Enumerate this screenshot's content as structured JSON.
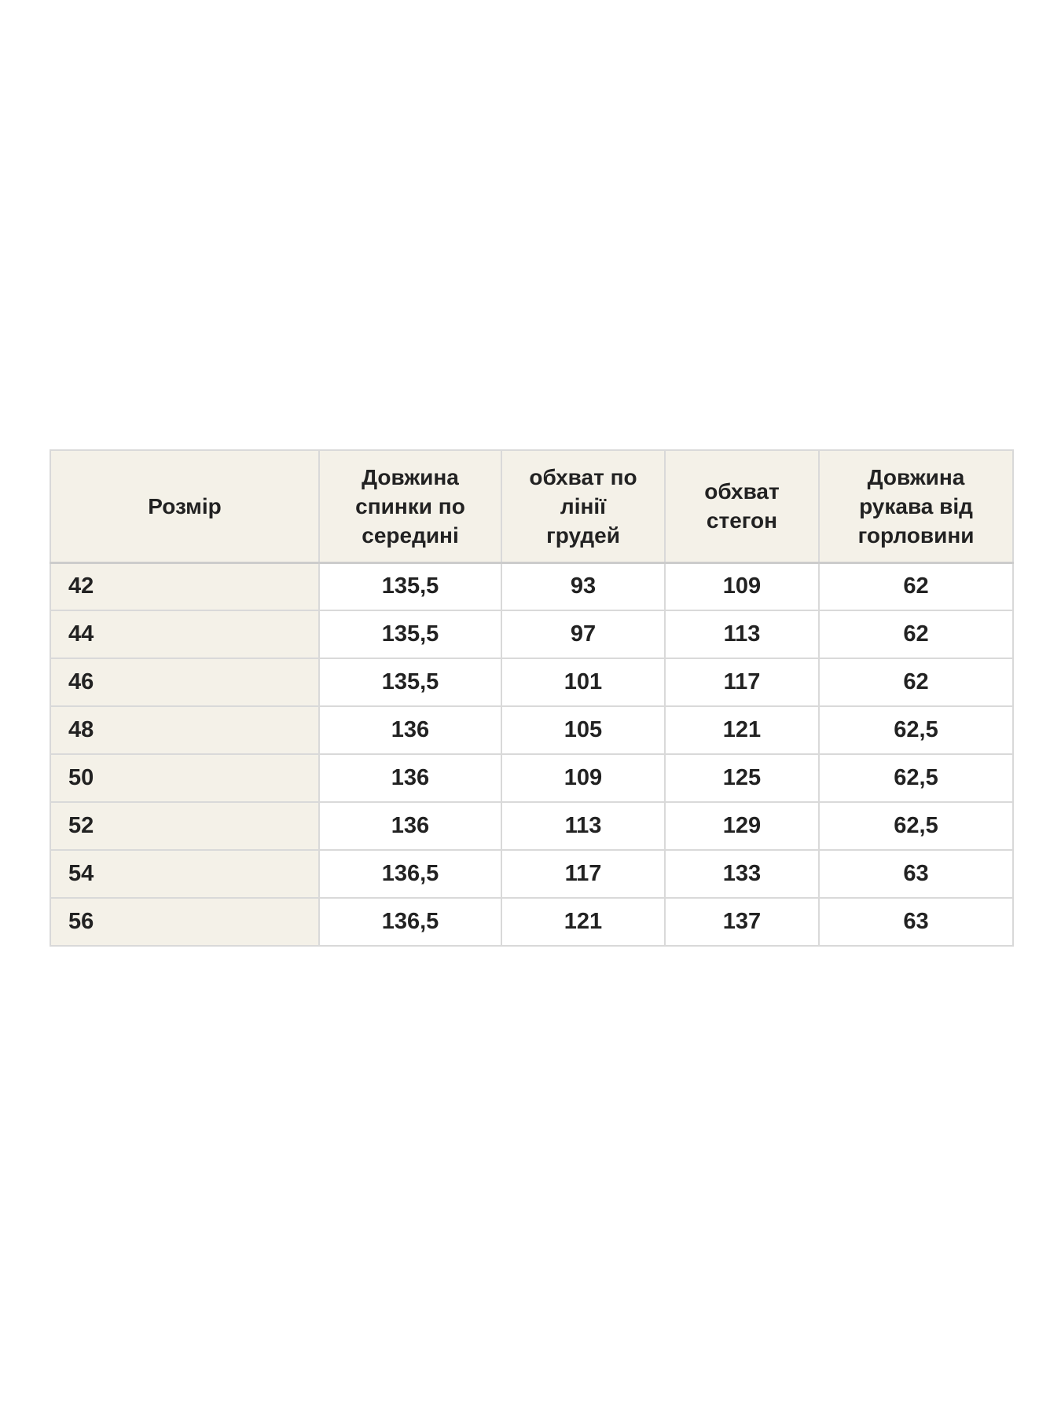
{
  "chart_data": {
    "type": "table",
    "columns": [
      "Розмір",
      "Довжина спинки по середині",
      "обхват по лінії грудей",
      "обхват стегон",
      "Довжина рукава від горловини"
    ],
    "header_display": [
      "Розмір",
      "Довжина\nспинки по\nсередині",
      "обхват по\nлінії\nгрудей",
      "обхват\nстегон",
      "Довжина\nрукава від\nгорловини"
    ],
    "rows": [
      [
        "42",
        "135,5",
        "93",
        "109",
        "62"
      ],
      [
        "44",
        "135,5",
        "97",
        "113",
        "62"
      ],
      [
        "46",
        "135,5",
        "101",
        "117",
        "62"
      ],
      [
        "48",
        "136",
        "105",
        "121",
        "62,5"
      ],
      [
        "50",
        "136",
        "109",
        "125",
        "62,5"
      ],
      [
        "52",
        "136",
        "113",
        "129",
        "62,5"
      ],
      [
        "54",
        "136,5",
        "117",
        "133",
        "63"
      ],
      [
        "56",
        "136,5",
        "121",
        "137",
        "63"
      ]
    ]
  },
  "colors": {
    "page_bg": "#ffffff",
    "header_bg": "#f4f1e8",
    "cell_bg": "#ffffff",
    "border": "#d9d9d9",
    "header_rule": "#cccccc",
    "text": "#222222"
  }
}
